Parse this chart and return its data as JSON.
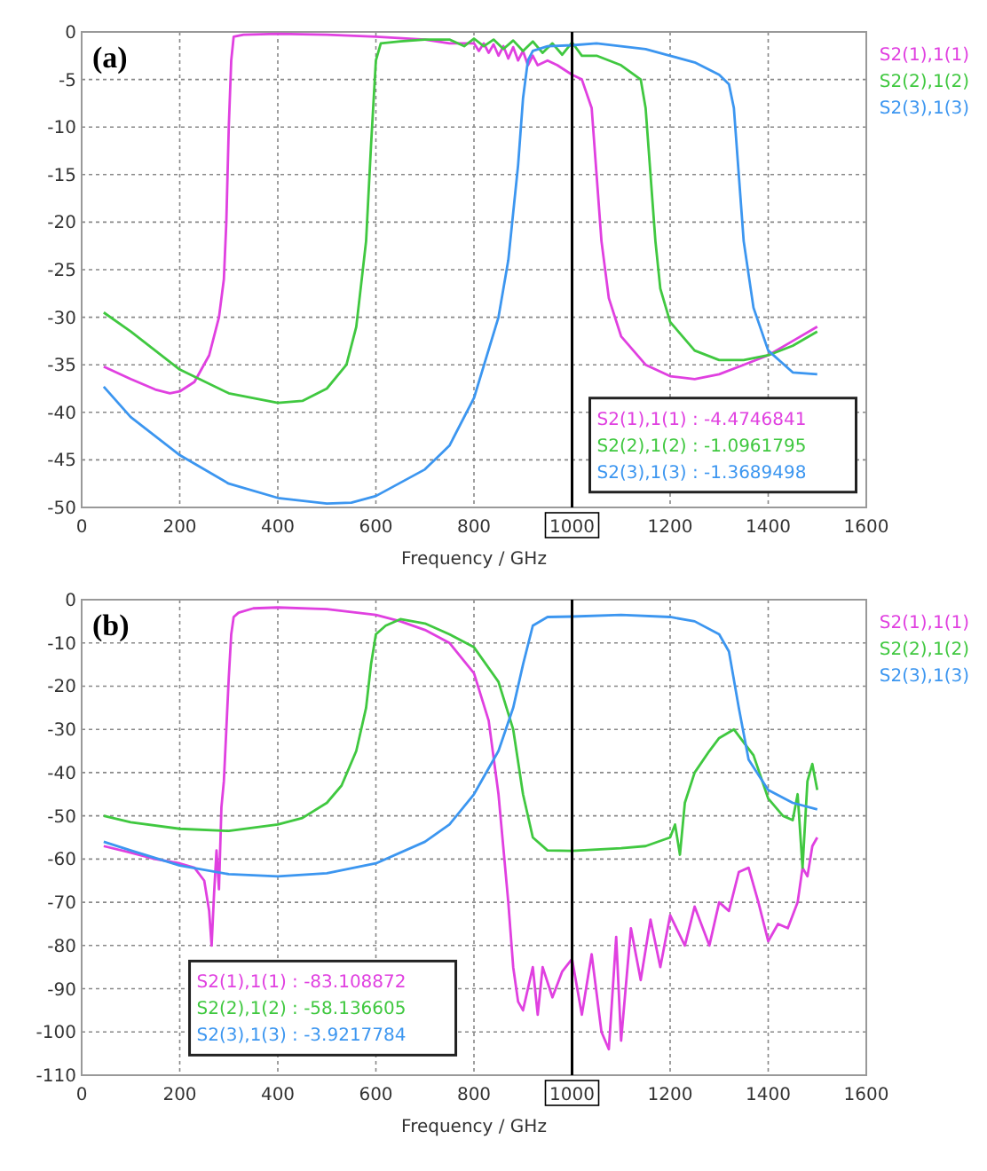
{
  "chart_data": [
    {
      "type": "line",
      "title": "(a)",
      "xlabel": "Frequency / GHz",
      "xlim": [
        0,
        1600
      ],
      "xticks": [
        0,
        200,
        400,
        600,
        800,
        {
          "value": 1000,
          "label": null
        },
        1200,
        1400,
        1600
      ],
      "ylim": [
        -50,
        0
      ],
      "yticks": [
        -50,
        -45,
        -40,
        -35,
        -30,
        -25,
        -20,
        -15,
        -10,
        -5,
        0
      ],
      "grid": true,
      "legend": "right",
      "ref_lines": [
        {
          "axis": "x",
          "value": 1000,
          "label": "1000",
          "color": "#000000"
        }
      ],
      "annotations": [
        "S2(1),1(1) : -4.4746841",
        "S2(2),1(2) : -1.0961795",
        "S2(3),1(3) : -1.3689498"
      ],
      "series": [
        {
          "name": "S2(1),1(1)",
          "color": "#e040e0",
          "x": [
            45,
            100,
            150,
            180,
            200,
            230,
            260,
            280,
            290,
            295,
            300,
            305,
            310,
            330,
            400,
            500,
            600,
            700,
            750,
            800,
            810,
            820,
            830,
            840,
            850,
            860,
            870,
            880,
            890,
            900,
            910,
            920,
            930,
            950,
            970,
            1000,
            1020,
            1040,
            1050,
            1060,
            1075,
            1100,
            1150,
            1200,
            1250,
            1300,
            1350,
            1400,
            1450,
            1500
          ],
          "values": [
            -35.2,
            -36.5,
            -37.6,
            -38,
            -37.8,
            -36.8,
            -34,
            -30,
            -26,
            -20,
            -10,
            -3,
            -0.5,
            -0.3,
            -0.2,
            -0.3,
            -0.5,
            -0.8,
            -1.2,
            -1.2,
            -2,
            -1.2,
            -2.2,
            -1.3,
            -2.5,
            -1.5,
            -2.8,
            -1.6,
            -3,
            -2,
            -3.5,
            -2.5,
            -3.5,
            -3,
            -3.5,
            -4.5,
            -5,
            -8,
            -15,
            -22,
            -28,
            -32,
            -35,
            -36.2,
            -36.5,
            -36,
            -35,
            -34,
            -32.5,
            -31
          ]
        },
        {
          "name": "S2(2),1(2)",
          "color": "#40c840",
          "x": [
            45,
            100,
            200,
            300,
            400,
            450,
            500,
            540,
            560,
            580,
            590,
            600,
            610,
            650,
            700,
            750,
            780,
            800,
            820,
            840,
            860,
            880,
            900,
            920,
            940,
            960,
            980,
            1000,
            1020,
            1050,
            1100,
            1140,
            1150,
            1160,
            1170,
            1180,
            1200,
            1250,
            1300,
            1350,
            1400,
            1450,
            1500
          ],
          "values": [
            -29.5,
            -31.5,
            -35.5,
            -38,
            -39,
            -38.8,
            -37.5,
            -35,
            -31,
            -22,
            -12,
            -3,
            -1.2,
            -1,
            -0.8,
            -0.8,
            -1.5,
            -0.7,
            -1.5,
            -0.8,
            -1.8,
            -0.9,
            -2,
            -1,
            -2.2,
            -1.2,
            -2.4,
            -1.1,
            -2.5,
            -2.5,
            -3.5,
            -5,
            -8,
            -15,
            -22,
            -27,
            -30.5,
            -33.5,
            -34.5,
            -34.5,
            -34,
            -33,
            -31.5
          ]
        },
        {
          "name": "S2(3),1(3)",
          "color": "#3c96f0",
          "x": [
            45,
            100,
            200,
            300,
            400,
            500,
            550,
            600,
            700,
            750,
            800,
            850,
            870,
            890,
            900,
            910,
            920,
            950,
            1000,
            1050,
            1100,
            1150,
            1200,
            1250,
            1300,
            1320,
            1330,
            1340,
            1350,
            1370,
            1400,
            1450,
            1500
          ],
          "values": [
            -37.3,
            -40.5,
            -44.5,
            -47.5,
            -49,
            -49.6,
            -49.5,
            -48.8,
            -46,
            -43.5,
            -38.5,
            -30,
            -24,
            -14,
            -7,
            -3,
            -2,
            -1.5,
            -1.4,
            -1.2,
            -1.5,
            -1.8,
            -2.5,
            -3.2,
            -4.5,
            -5.5,
            -8,
            -15,
            -22,
            -29,
            -33.5,
            -35.8,
            -36
          ]
        }
      ]
    },
    {
      "type": "line",
      "title": "(b)",
      "xlabel": "Frequency / GHz",
      "xlim": [
        0,
        1600
      ],
      "xticks": [
        0,
        200,
        400,
        600,
        800,
        {
          "value": 1000,
          "label": null
        },
        1200,
        1400,
        1600
      ],
      "ylim": [
        -110,
        0
      ],
      "yticks": [
        -110,
        -100,
        -90,
        -80,
        -70,
        -60,
        -50,
        -40,
        -30,
        -20,
        -10,
        0
      ],
      "grid": true,
      "legend": "right",
      "ref_lines": [
        {
          "axis": "x",
          "value": 1000,
          "label": "1000",
          "color": "#000000"
        }
      ],
      "annotations": [
        "S2(1),1(1) : -83.108872",
        "S2(2),1(2) : -58.136605",
        "S2(3),1(3) : -3.9217784"
      ],
      "series": [
        {
          "name": "S2(1),1(1)",
          "color": "#e040e0",
          "x": [
            45,
            100,
            150,
            200,
            230,
            250,
            260,
            265,
            270,
            275,
            280,
            285,
            290,
            295,
            300,
            305,
            310,
            320,
            350,
            400,
            500,
            600,
            650,
            700,
            750,
            800,
            830,
            850,
            870,
            880,
            890,
            900,
            910,
            920,
            930,
            940,
            960,
            980,
            1000,
            1020,
            1040,
            1060,
            1075,
            1090,
            1100,
            1120,
            1140,
            1160,
            1180,
            1200,
            1230,
            1250,
            1280,
            1300,
            1320,
            1340,
            1360,
            1380,
            1400,
            1420,
            1440,
            1460,
            1470,
            1480,
            1490,
            1500
          ],
          "values": [
            -57,
            -58.5,
            -60,
            -61,
            -62,
            -65,
            -72,
            -80,
            -68,
            -58,
            -67,
            -48,
            -42,
            -30,
            -18,
            -8,
            -4,
            -3,
            -2,
            -1.8,
            -2.2,
            -3.5,
            -5,
            -7,
            -10,
            -17,
            -28,
            -45,
            -70,
            -85,
            -93,
            -95,
            -90,
            -85,
            -96,
            -85,
            -92,
            -86,
            -83.1,
            -96,
            -82,
            -100,
            -104,
            -78,
            -102,
            -76,
            -88,
            -74,
            -85,
            -73,
            -80,
            -71,
            -80,
            -70,
            -72,
            -63,
            -62,
            -70,
            -79,
            -75,
            -76,
            -70,
            -62,
            -64,
            -57,
            -55
          ]
        },
        {
          "name": "S2(2),1(2)",
          "color": "#40c840",
          "x": [
            45,
            100,
            200,
            300,
            400,
            450,
            500,
            530,
            560,
            580,
            590,
            600,
            620,
            650,
            700,
            750,
            800,
            850,
            880,
            900,
            920,
            950,
            1000,
            1100,
            1150,
            1200,
            1210,
            1220,
            1230,
            1250,
            1280,
            1300,
            1330,
            1350,
            1370,
            1400,
            1430,
            1450,
            1460,
            1470,
            1480,
            1490,
            1500
          ],
          "values": [
            -50,
            -51.5,
            -53,
            -53.5,
            -52,
            -50.5,
            -47,
            -43,
            -35,
            -25,
            -15,
            -8,
            -6,
            -4.5,
            -5.5,
            -8,
            -11,
            -19,
            -30,
            -45,
            -55,
            -58,
            -58.1,
            -57.5,
            -57,
            -55,
            -52,
            -59,
            -47,
            -40,
            -35,
            -32,
            -30,
            -33,
            -36,
            -46,
            -50,
            -51,
            -45,
            -62,
            -42,
            -38,
            -44
          ]
        },
        {
          "name": "S2(3),1(3)",
          "color": "#3c96f0",
          "x": [
            45,
            100,
            200,
            300,
            400,
            500,
            600,
            700,
            750,
            800,
            850,
            880,
            900,
            920,
            950,
            1000,
            1100,
            1200,
            1250,
            1300,
            1320,
            1340,
            1360,
            1400,
            1450,
            1500
          ],
          "values": [
            -56,
            -58,
            -61.5,
            -63.5,
            -64,
            -63.3,
            -61,
            -56,
            -52,
            -45,
            -35,
            -25,
            -15,
            -6,
            -4,
            -3.9,
            -3.5,
            -4,
            -5,
            -8,
            -12,
            -25,
            -37,
            -44,
            -47,
            -48.5
          ]
        }
      ]
    }
  ]
}
